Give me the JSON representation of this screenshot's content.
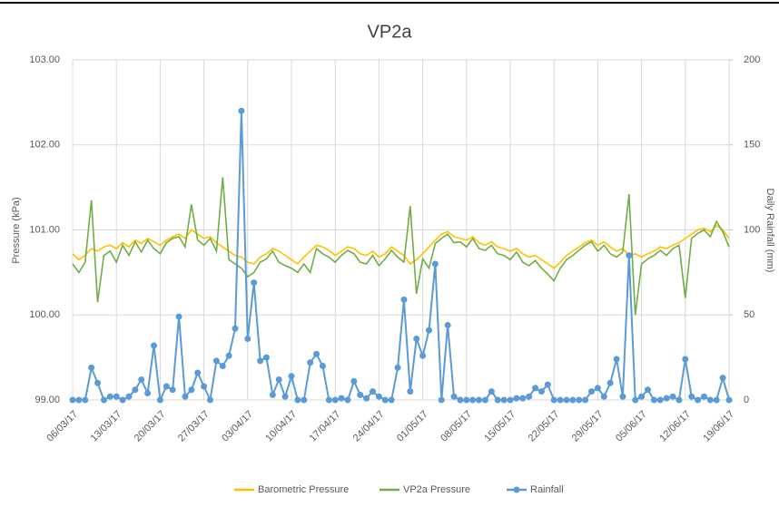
{
  "chart_data": {
    "type": "line",
    "title": "VP2a",
    "y_label": "Pressure (kPa)",
    "y2_label": "Daily Rainfall (mm)",
    "categories": [
      "06/03/17",
      null,
      null,
      null,
      null,
      null,
      null,
      "13/03/17",
      null,
      null,
      null,
      null,
      null,
      null,
      "20/03/17",
      null,
      null,
      null,
      null,
      null,
      null,
      "27/03/17",
      null,
      null,
      null,
      null,
      null,
      null,
      "03/04/17",
      null,
      null,
      null,
      null,
      null,
      null,
      "10/04/17",
      null,
      null,
      null,
      null,
      null,
      null,
      "17/04/17",
      null,
      null,
      null,
      null,
      null,
      null,
      "24/04/17",
      null,
      null,
      null,
      null,
      null,
      null,
      "01/05/17",
      null,
      null,
      null,
      null,
      null,
      null,
      "08/05/17",
      null,
      null,
      null,
      null,
      null,
      null,
      "15/05/17",
      null,
      null,
      null,
      null,
      null,
      null,
      "22/05/17",
      null,
      null,
      null,
      null,
      null,
      null,
      "29/05/17",
      null,
      null,
      null,
      null,
      null,
      null,
      "05/06/17",
      null,
      null,
      null,
      null,
      null,
      null,
      "12/06/17",
      null,
      null,
      null,
      null,
      null,
      null,
      "19/06/17"
    ],
    "ylim": [
      99,
      103
    ],
    "yticks": [
      {
        "value": 99,
        "label": "99.00"
      },
      {
        "value": 100,
        "label": "100.00"
      },
      {
        "value": 101,
        "label": "101.00"
      },
      {
        "value": 102,
        "label": "102.00"
      },
      {
        "value": 103,
        "label": "103.00"
      }
    ],
    "y2lim": [
      0,
      200
    ],
    "y2ticks": [
      0,
      50,
      100,
      150,
      200
    ],
    "grid": true,
    "legend": "bottom",
    "series": [
      {
        "name": "Barometric Pressure",
        "color": "#ffc000",
        "axis": "y",
        "values": [
          100.72,
          100.65,
          100.7,
          100.78,
          100.75,
          100.8,
          100.82,
          100.78,
          100.85,
          100.8,
          100.88,
          100.84,
          100.9,
          100.86,
          100.82,
          100.88,
          100.92,
          100.95,
          100.9,
          101.0,
          100.95,
          100.9,
          100.92,
          100.85,
          100.8,
          100.75,
          100.7,
          100.68,
          100.62,
          100.6,
          100.68,
          100.72,
          100.78,
          100.75,
          100.7,
          100.65,
          100.6,
          100.68,
          100.75,
          100.82,
          100.8,
          100.76,
          100.7,
          100.75,
          100.8,
          100.78,
          100.72,
          100.7,
          100.75,
          100.68,
          100.72,
          100.8,
          100.75,
          100.7,
          100.6,
          100.65,
          100.72,
          100.8,
          100.88,
          100.95,
          100.98,
          100.92,
          100.9,
          100.88,
          100.92,
          100.85,
          100.82,
          100.86,
          100.8,
          100.78,
          100.75,
          100.78,
          100.72,
          100.68,
          100.7,
          100.65,
          100.6,
          100.55,
          100.62,
          100.7,
          100.75,
          100.8,
          100.85,
          100.88,
          100.82,
          100.86,
          100.8,
          100.75,
          100.78,
          100.7,
          100.72,
          100.68,
          100.72,
          100.75,
          100.8,
          100.78,
          100.82,
          100.85,
          100.9,
          100.95,
          101.0,
          101.02,
          100.98,
          101.05,
          101.0,
          100.9
        ]
      },
      {
        "name": "VP2a Pressure",
        "color": "#70ad47",
        "axis": "y",
        "values": [
          100.6,
          100.5,
          100.62,
          101.35,
          100.15,
          100.7,
          100.75,
          100.62,
          100.82,
          100.7,
          100.86,
          100.74,
          100.88,
          100.78,
          100.72,
          100.85,
          100.9,
          100.92,
          100.8,
          101.3,
          100.88,
          100.82,
          100.9,
          100.75,
          101.62,
          100.65,
          100.6,
          100.55,
          100.45,
          100.5,
          100.62,
          100.66,
          100.75,
          100.62,
          100.58,
          100.55,
          100.5,
          100.6,
          100.5,
          100.78,
          100.72,
          100.68,
          100.62,
          100.7,
          100.76,
          100.72,
          100.62,
          100.6,
          100.7,
          100.58,
          100.66,
          100.76,
          100.68,
          100.62,
          101.28,
          100.25,
          100.66,
          100.55,
          100.84,
          100.9,
          100.95,
          100.85,
          100.86,
          100.8,
          100.9,
          100.78,
          100.76,
          100.82,
          100.72,
          100.7,
          100.65,
          100.74,
          100.62,
          100.58,
          100.64,
          100.55,
          100.48,
          100.4,
          100.55,
          100.65,
          100.7,
          100.76,
          100.82,
          100.86,
          100.75,
          100.82,
          100.72,
          100.68,
          100.74,
          101.42,
          100.0,
          100.6,
          100.66,
          100.7,
          100.76,
          100.7,
          100.78,
          100.82,
          100.2,
          100.9,
          100.96,
          101.0,
          100.92,
          101.1,
          100.98,
          100.8
        ]
      },
      {
        "name": "Rainfall",
        "color": "#5b9bd5",
        "axis": "y2",
        "values": [
          0,
          0,
          0,
          19,
          10,
          0,
          2,
          2,
          0,
          2,
          6,
          12,
          4,
          32,
          0,
          8,
          6,
          49,
          2,
          6,
          16,
          8,
          0,
          23,
          20,
          26,
          42,
          170,
          36,
          69,
          23,
          25,
          3,
          12,
          2,
          14,
          0,
          0,
          22,
          27,
          20,
          0,
          0,
          1,
          0,
          11,
          3,
          1,
          5,
          2,
          0,
          0,
          19,
          59,
          5,
          36,
          26,
          41,
          80,
          0,
          44,
          2,
          0,
          0,
          0,
          0,
          0,
          5,
          0,
          0,
          0,
          1,
          1,
          2,
          7,
          5,
          9,
          0,
          0,
          0,
          0,
          0,
          0,
          5,
          7,
          2,
          10,
          24,
          2,
          85,
          0,
          2,
          6,
          0,
          0,
          1,
          2,
          0,
          24,
          2,
          0,
          2,
          0,
          0,
          13,
          0
        ]
      }
    ]
  }
}
